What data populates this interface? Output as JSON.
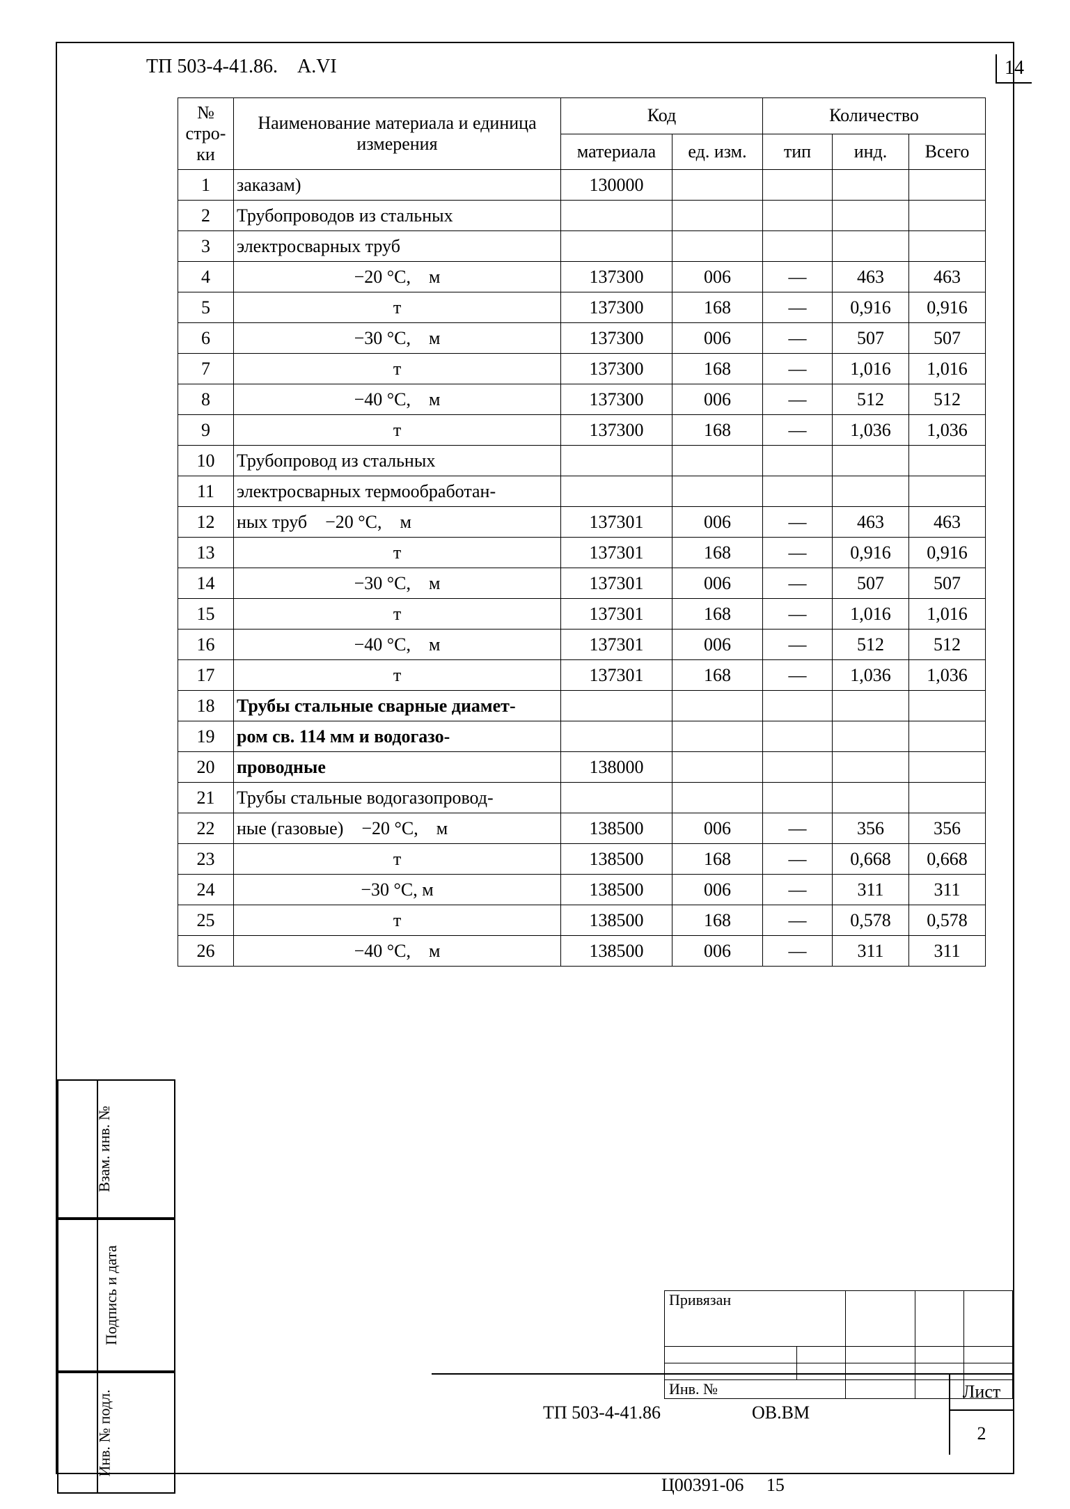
{
  "header": "ТП 503-4-41.86. A.VI",
  "page_number": "14",
  "table": {
    "head": {
      "row_no": "№ стро-ки",
      "name": "Наименование материала и единица измерения",
      "code": "Код",
      "code_mat": "материала",
      "code_ed": "ед. изм.",
      "qty": "Количество",
      "qty_tip": "тип",
      "qty_ind": "инд.",
      "qty_total": "Всего"
    },
    "rows": [
      {
        "n": "1",
        "name": "заказам)",
        "align": "left",
        "bold": false,
        "mat": "130000",
        "ed": "",
        "tip": "",
        "ind": "",
        "tot": ""
      },
      {
        "n": "2",
        "name": "Трубопроводов из стальных",
        "align": "left",
        "bold": false,
        "mat": "",
        "ed": "",
        "tip": "",
        "ind": "",
        "tot": ""
      },
      {
        "n": "3",
        "name": "электросварных труб",
        "align": "left",
        "bold": false,
        "mat": "",
        "ed": "",
        "tip": "",
        "ind": "",
        "tot": ""
      },
      {
        "n": "4",
        "name": "−20 °С, м",
        "align": "center",
        "bold": false,
        "mat": "137300",
        "ed": "006",
        "tip": "—",
        "ind": "463",
        "tot": "463"
      },
      {
        "n": "5",
        "name": "т",
        "align": "center",
        "bold": false,
        "mat": "137300",
        "ed": "168",
        "tip": "—",
        "ind": "0,916",
        "tot": "0,916"
      },
      {
        "n": "6",
        "name": "−30 °С, м",
        "align": "center",
        "bold": false,
        "mat": "137300",
        "ed": "006",
        "tip": "—",
        "ind": "507",
        "tot": "507"
      },
      {
        "n": "7",
        "name": "т",
        "align": "center",
        "bold": false,
        "mat": "137300",
        "ed": "168",
        "tip": "—",
        "ind": "1,016",
        "tot": "1,016"
      },
      {
        "n": "8",
        "name": "−40 °С, м",
        "align": "center",
        "bold": false,
        "mat": "137300",
        "ed": "006",
        "tip": "—",
        "ind": "512",
        "tot": "512"
      },
      {
        "n": "9",
        "name": "т",
        "align": "center",
        "bold": false,
        "mat": "137300",
        "ed": "168",
        "tip": "—",
        "ind": "1,036",
        "tot": "1,036"
      },
      {
        "n": "10",
        "name": "Трубопровод из стальных",
        "align": "left",
        "bold": false,
        "mat": "",
        "ed": "",
        "tip": "",
        "ind": "",
        "tot": ""
      },
      {
        "n": "11",
        "name": "электросварных термообработан-",
        "align": "left",
        "bold": false,
        "mat": "",
        "ed": "",
        "tip": "",
        "ind": "",
        "tot": ""
      },
      {
        "n": "12",
        "name": "ных труб −20 °С, м",
        "align": "left",
        "bold": false,
        "mat": "137301",
        "ed": "006",
        "tip": "—",
        "ind": "463",
        "tot": "463"
      },
      {
        "n": "13",
        "name": "т",
        "align": "center",
        "bold": false,
        "mat": "137301",
        "ed": "168",
        "tip": "—",
        "ind": "0,916",
        "tot": "0,916"
      },
      {
        "n": "14",
        "name": "−30 °С, м",
        "align": "center",
        "bold": false,
        "mat": "137301",
        "ed": "006",
        "tip": "—",
        "ind": "507",
        "tot": "507"
      },
      {
        "n": "15",
        "name": "т",
        "align": "center",
        "bold": false,
        "mat": "137301",
        "ed": "168",
        "tip": "—",
        "ind": "1,016",
        "tot": "1,016"
      },
      {
        "n": "16",
        "name": "−40 °С, м",
        "align": "center",
        "bold": false,
        "mat": "137301",
        "ed": "006",
        "tip": "—",
        "ind": "512",
        "tot": "512"
      },
      {
        "n": "17",
        "name": "т",
        "align": "center",
        "bold": false,
        "mat": "137301",
        "ed": "168",
        "tip": "—",
        "ind": "1,036",
        "tot": "1,036"
      },
      {
        "n": "18",
        "name": "Трубы стальные сварные диамет-",
        "align": "left",
        "bold": true,
        "mat": "",
        "ed": "",
        "tip": "",
        "ind": "",
        "tot": ""
      },
      {
        "n": "19",
        "name": "ром св. 114 мм и водогазо-",
        "align": "left",
        "bold": true,
        "mat": "",
        "ed": "",
        "tip": "",
        "ind": "",
        "tot": ""
      },
      {
        "n": "20",
        "name": "проводные",
        "align": "left",
        "bold": true,
        "mat": "138000",
        "ed": "",
        "tip": "",
        "ind": "",
        "tot": ""
      },
      {
        "n": "21",
        "name": "Трубы стальные водогазопровод-",
        "align": "left",
        "bold": false,
        "mat": "",
        "ed": "",
        "tip": "",
        "ind": "",
        "tot": ""
      },
      {
        "n": "22",
        "name": "ные (газовые) −20 °С, м",
        "align": "left",
        "bold": false,
        "mat": "138500",
        "ed": "006",
        "tip": "—",
        "ind": "356",
        "tot": "356"
      },
      {
        "n": "23",
        "name": "т",
        "align": "center",
        "bold": false,
        "mat": "138500",
        "ed": "168",
        "tip": "—",
        "ind": "0,668",
        "tot": "0,668"
      },
      {
        "n": "24",
        "name": "−30 °С, м",
        "align": "center",
        "bold": false,
        "mat": "138500",
        "ed": "006",
        "tip": "—",
        "ind": "311",
        "tot": "311"
      },
      {
        "n": "25",
        "name": "т",
        "align": "center",
        "bold": false,
        "mat": "138500",
        "ed": "168",
        "tip": "—",
        "ind": "0,578",
        "tot": "0,578"
      },
      {
        "n": "26",
        "name": "−40 °С, м",
        "align": "center",
        "bold": false,
        "mat": "138500",
        "ed": "006",
        "tip": "—",
        "ind": "311",
        "tot": "311"
      }
    ]
  },
  "stamps": {
    "s1": "Взам. инв. №",
    "s2": "Подпись и дата",
    "s3": "Инв. № подл."
  },
  "small_stamp": {
    "r1": "Привязан",
    "r4": "Инв. №"
  },
  "title_block": {
    "doc": "ТП 503-4-41.86",
    "suffix": "ОВ.ВМ",
    "sheet_label": "Лист",
    "sheet_value": "2"
  },
  "footer": "Ц00391-06  15"
}
